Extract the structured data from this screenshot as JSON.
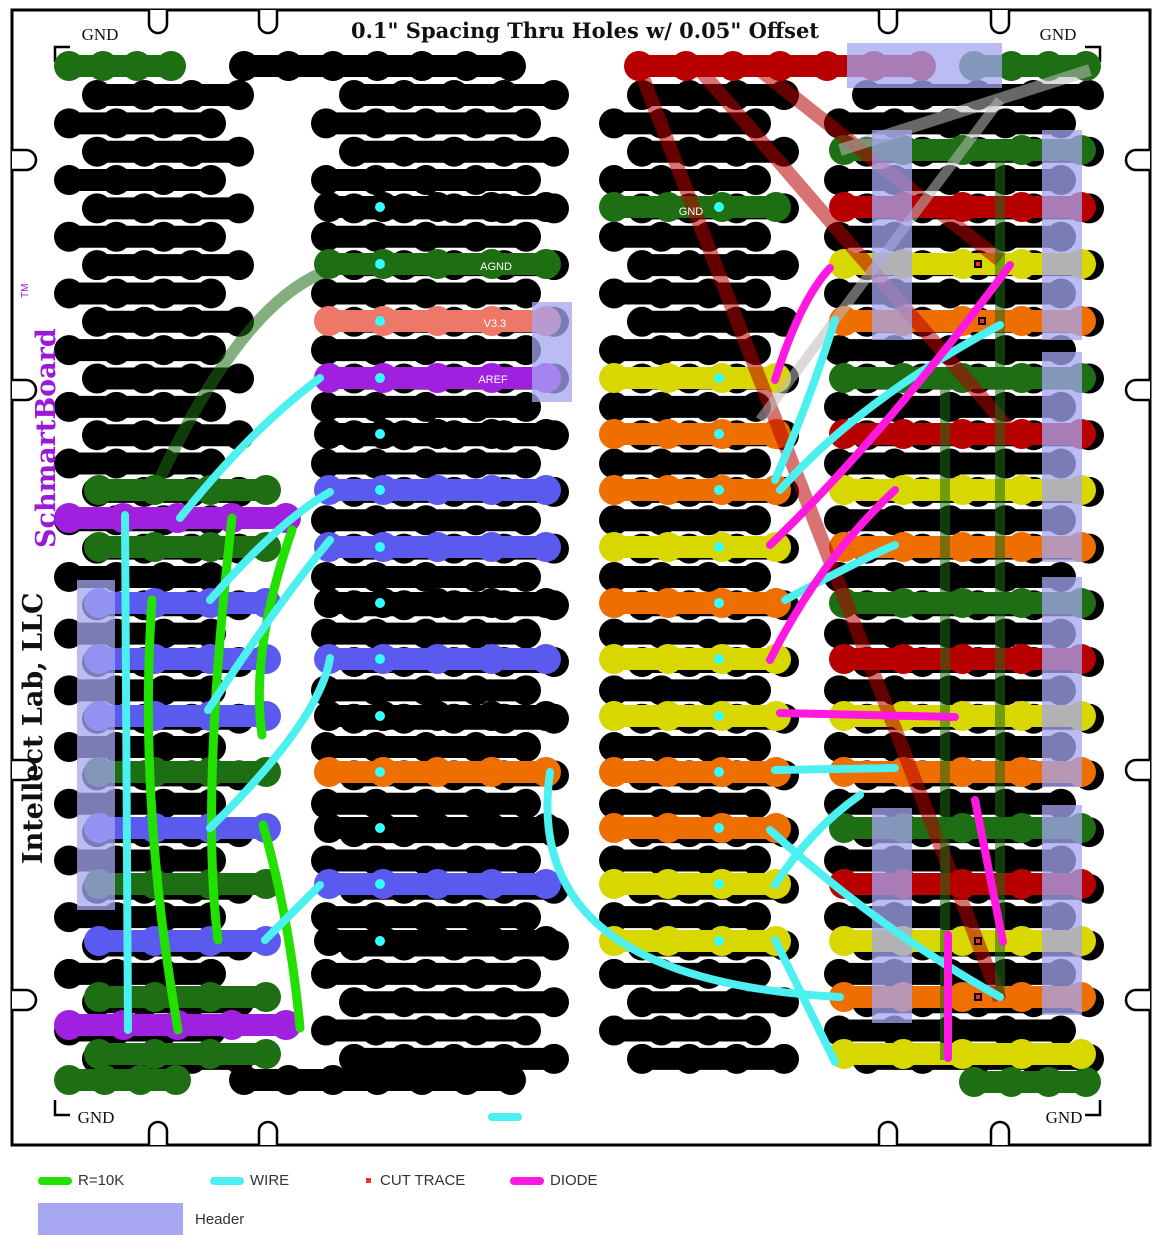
{
  "board": {
    "title": "0.1\" Spacing Thru Holes w/ 0.05\" Offset",
    "brand": "SchmartBoard",
    "brand_tm": "TM",
    "maker": "Intellect Lab, LLC",
    "gnd_labels": [
      "GND",
      "GND",
      "GND",
      "GND"
    ],
    "net_labels": {
      "gnd": "GND",
      "agnd": "AGND",
      "v33": "V3.3",
      "aref": "AREF"
    }
  },
  "legend": {
    "resistor": "R=10K",
    "wire": "WIRE",
    "cut_trace": "CUT TRACE",
    "diode": "DIODE",
    "header": "Header"
  },
  "colors": {
    "black_strip": "#000000",
    "green": "#1e6e14",
    "red": "#b80000",
    "yellow": "#d8d800",
    "orange": "#ee6e00",
    "blue": "#5a5aee",
    "purple": "#a020e0",
    "salmon": "#ee7868",
    "cyan_wire": "#4cf0f0",
    "resistor": "#22e000",
    "diode": "#ff18e0",
    "header": "#a6a6f2"
  }
}
